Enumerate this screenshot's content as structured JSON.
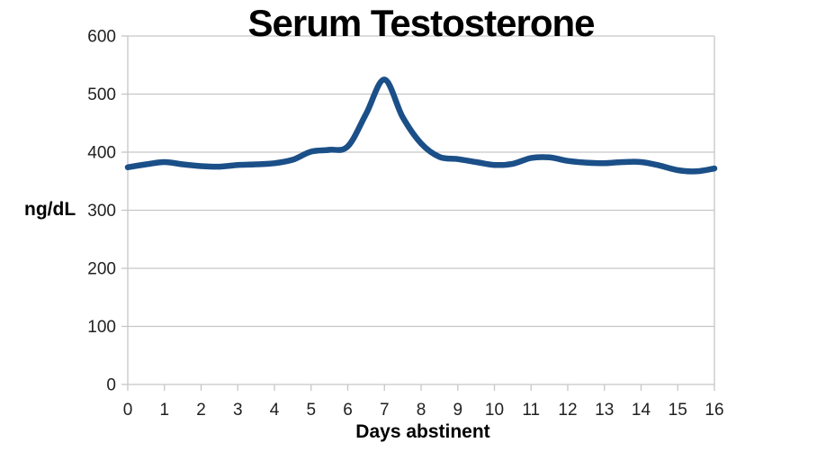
{
  "chart_data": {
    "type": "line",
    "title": "Serum Testosterone",
    "xlabel": "Days abstinent",
    "ylabel": "ng/dL",
    "xlim": [
      0,
      16
    ],
    "ylim": [
      0,
      600
    ],
    "x_ticks": [
      0,
      1,
      2,
      3,
      4,
      5,
      6,
      7,
      8,
      9,
      10,
      11,
      12,
      13,
      14,
      15,
      16
    ],
    "y_ticks": [
      0,
      100,
      200,
      300,
      400,
      500,
      600
    ],
    "grid": "horizontal",
    "legend_position": "none",
    "line_color": "#1b4f88",
    "grid_color": "#c6c6c6",
    "tick_text_color": "#212121",
    "series": [
      {
        "name": "Serum Testosterone",
        "x": [
          0,
          0.5,
          1,
          1.5,
          2,
          2.5,
          3,
          3.5,
          4,
          4.5,
          5,
          5.5,
          6,
          6.5,
          7,
          7.5,
          8,
          8.5,
          9,
          9.5,
          10,
          10.5,
          11,
          11.5,
          12,
          12.5,
          13,
          13.5,
          14,
          14.5,
          15,
          15.5,
          16
        ],
        "y": [
          374,
          379,
          383,
          379,
          376,
          375,
          378,
          379,
          381,
          387,
          401,
          404,
          410,
          466,
          525,
          460,
          415,
          392,
          388,
          383,
          378,
          380,
          390,
          391,
          385,
          382,
          381,
          383,
          383,
          377,
          369,
          367,
          372
        ]
      }
    ]
  }
}
